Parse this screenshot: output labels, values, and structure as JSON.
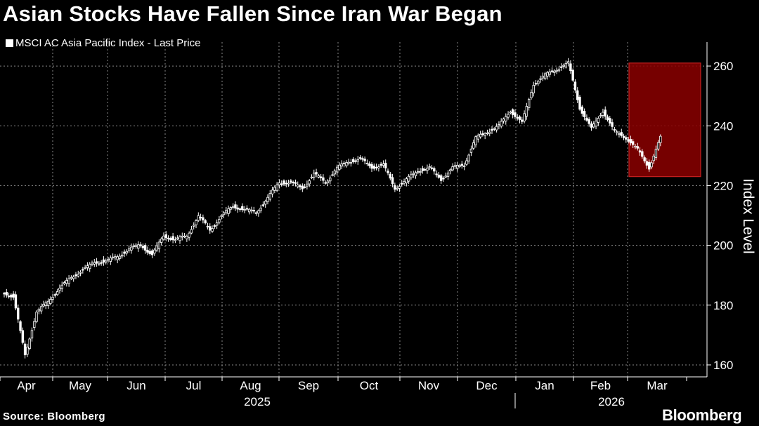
{
  "chart_data": {
    "type": "candlestick",
    "title": "Asian Stocks Have Fallen Since Iran War Began",
    "legend": [
      "MSCI AC Asia Pacific Index - Last Price"
    ],
    "xlabel": "",
    "ylabel": "Index Level",
    "ylim": [
      156,
      268
    ],
    "yticks": [
      160,
      180,
      200,
      220,
      240,
      260
    ],
    "months": [
      "Apr",
      "May",
      "Jun",
      "Jul",
      "Aug",
      "Sep",
      "Oct",
      "Nov",
      "Dec",
      "Jan",
      "Feb",
      "Mar"
    ],
    "years": [
      "2025",
      "2026"
    ],
    "series": [
      {
        "name": "MSCI AC Asia Pacific Index - Last Price",
        "weekly_close": [
          183,
          163,
          178,
          181,
          186,
          189,
          192,
          194,
          195,
          196,
          199,
          200,
          197,
          203,
          202,
          203,
          210,
          205,
          210,
          213,
          212,
          211,
          216,
          221,
          221,
          219,
          224,
          221,
          226,
          228,
          229,
          226,
          227,
          219,
          222,
          225,
          226,
          222,
          226,
          227,
          236,
          238,
          240,
          245,
          241,
          254,
          257,
          259,
          261,
          246,
          239,
          245,
          238,
          236,
          232,
          226,
          236
        ]
      }
    ],
    "annotations": [
      {
        "type": "highlight",
        "label": "",
        "x_from_week": 48,
        "x_to_week": 56,
        "ylim": [
          223,
          261
        ],
        "color": "#8b0000"
      }
    ]
  },
  "footer": {
    "source": "Source: Bloomberg",
    "brand": "Bloomberg"
  }
}
